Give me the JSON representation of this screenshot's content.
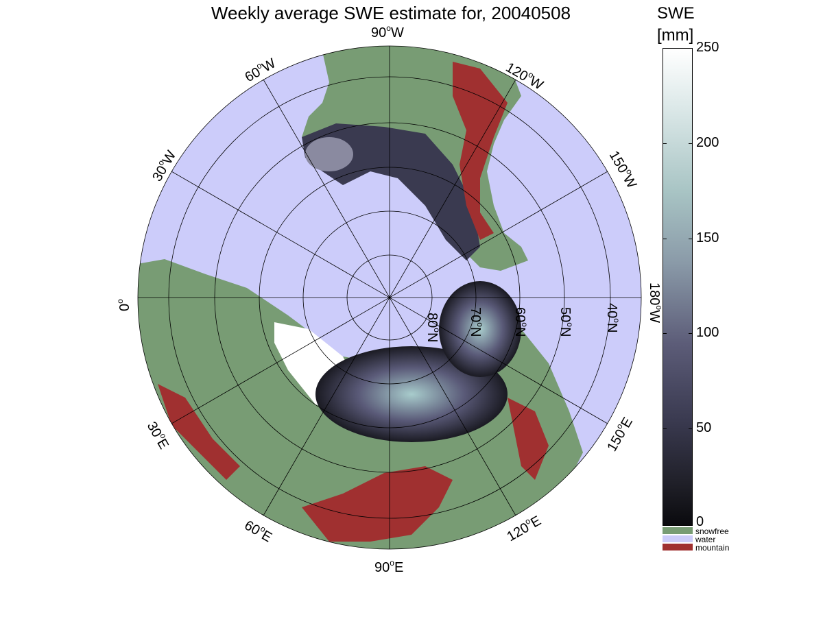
{
  "title": "Weekly average SWE estimate for, 20040508",
  "colorbar": {
    "title_line1": "SWE",
    "title_line2": "[mm]",
    "ticks": [
      "250",
      "200",
      "150",
      "100",
      "50",
      "0"
    ],
    "categories": [
      {
        "label": "snowfree",
        "color": "#789c74"
      },
      {
        "label": "water",
        "color": "#ccccfa"
      },
      {
        "label": "mountain",
        "color": "#a03030"
      }
    ]
  },
  "longitude_labels": {
    "lon_90w": "90",
    "lon_90w_suffix": "W",
    "lon_120w": "120",
    "lon_120w_suffix": "W",
    "lon_60w": "60",
    "lon_60w_suffix": "W",
    "lon_150w": "150",
    "lon_150w_suffix": "W",
    "lon_30w": "30",
    "lon_30w_suffix": "W",
    "lon_180w": "180",
    "lon_180w_suffix": "W",
    "lon_0": "0",
    "lon_0_suffix": "",
    "lon_30e": "30",
    "lon_30e_suffix": "E",
    "lon_150e": "150",
    "lon_150e_suffix": "E",
    "lon_60e": "60",
    "lon_60e_suffix": "E",
    "lon_120e": "120",
    "lon_120e_suffix": "E",
    "lon_90e": "90",
    "lon_90e_suffix": "E"
  },
  "latitude_labels": {
    "lat_80": "80",
    "lat_70": "70",
    "lat_60": "60",
    "lat_50": "50",
    "lat_40": "40",
    "suffix": "N"
  },
  "colors": {
    "water": "#ccccfa",
    "land": "#789c74",
    "mountain": "#a03030",
    "snow_low": "#1a1a22",
    "snow_mid": "#5a5a78",
    "snow_high": "#a8cccc"
  }
}
